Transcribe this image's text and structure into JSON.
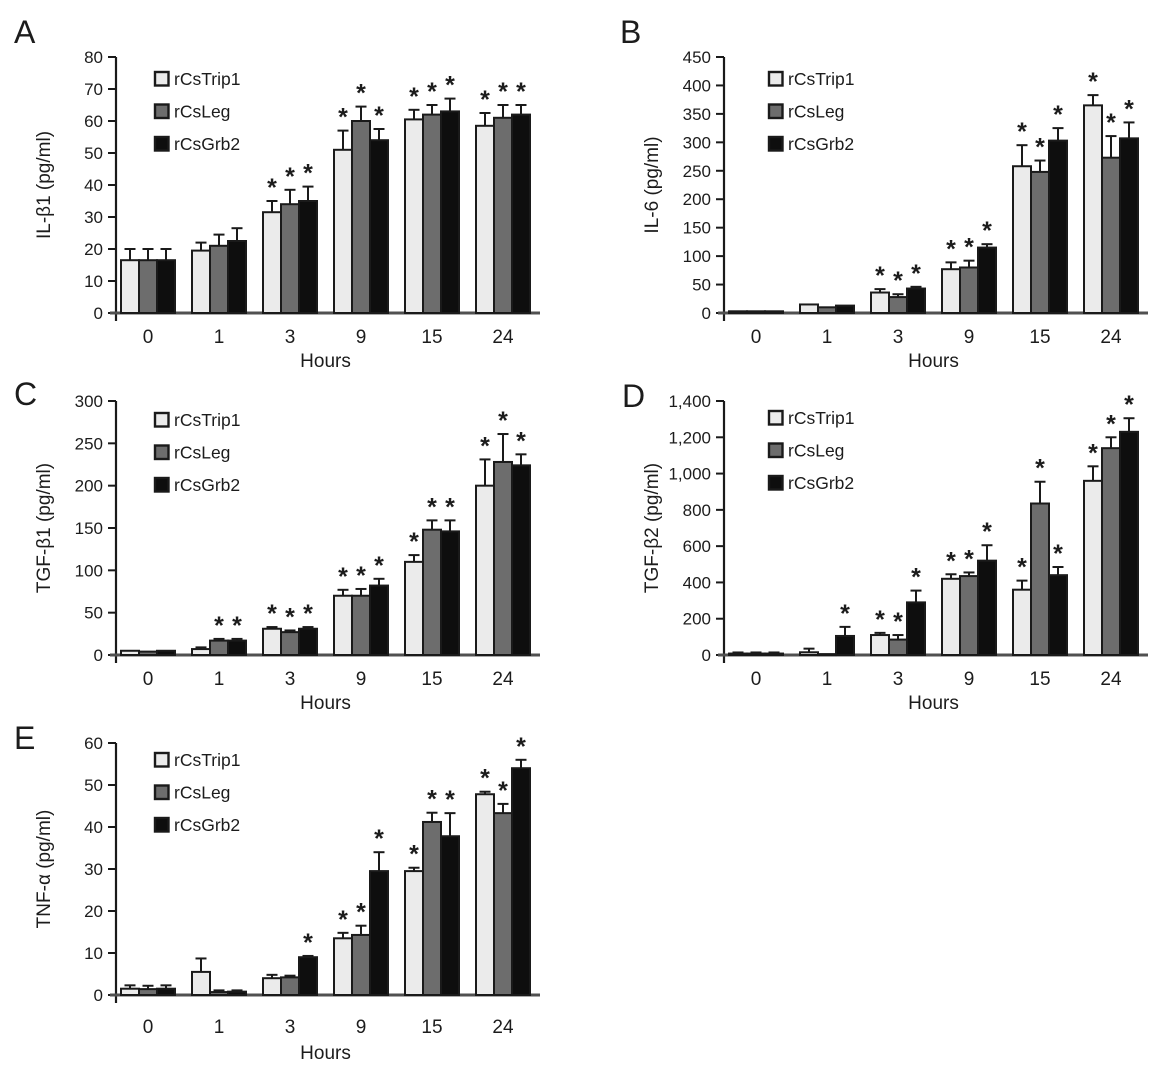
{
  "colors": {
    "rCsTrip1": "#ebebeb",
    "rCsLeg": "#6d6d6d",
    "rCsGrb2": "#0e0e0e",
    "bar_stroke": "#1a1a1a",
    "axis": "#1a1a1a",
    "baseline": "#505050",
    "text": "#1c1c1c"
  },
  "chart_data": [
    {
      "type": "bar",
      "panel_label": "A",
      "ylabel": "IL-β1 (pg/ml)",
      "xlabel": "Hours",
      "categories": [
        "0",
        "1",
        "3",
        "9",
        "15",
        "24"
      ],
      "ylim": [
        0,
        80
      ],
      "ytick_step": 10,
      "comma_ticks": false,
      "grid": false,
      "legend_position": "top-left",
      "legend": [
        "rCsTrip1",
        "rCsLeg",
        "rCsGrb2"
      ],
      "series": [
        {
          "name": "rCsTrip1",
          "values": [
            16.5,
            19.5,
            31.5,
            51,
            60.5,
            58.5
          ],
          "errors": [
            3.5,
            2.5,
            3.5,
            6,
            3,
            4
          ],
          "sig": [
            false,
            false,
            true,
            true,
            true,
            true
          ]
        },
        {
          "name": "rCsLeg",
          "values": [
            16.5,
            21,
            34,
            60,
            62,
            61
          ],
          "errors": [
            3.5,
            3.5,
            4.5,
            4.5,
            3,
            4
          ],
          "sig": [
            false,
            false,
            true,
            true,
            true,
            true
          ]
        },
        {
          "name": "rCsGrb2",
          "values": [
            16.5,
            22.5,
            35,
            54,
            63,
            62
          ],
          "errors": [
            3.5,
            4,
            4.5,
            3.5,
            4,
            3
          ],
          "sig": [
            false,
            false,
            true,
            true,
            true,
            true
          ]
        }
      ]
    },
    {
      "type": "bar",
      "panel_label": "B",
      "ylabel": "IL-6 (pg/ml)",
      "xlabel": "Hours",
      "categories": [
        "0",
        "1",
        "3",
        "9",
        "15",
        "24"
      ],
      "ylim": [
        0,
        450
      ],
      "ytick_step": 50,
      "comma_ticks": false,
      "grid": false,
      "legend_position": "top-left",
      "legend": [
        "rCsTrip1",
        "rCsLeg",
        "rCsGrb2"
      ],
      "series": [
        {
          "name": "rCsTrip1",
          "values": [
            3,
            15,
            36,
            77,
            258,
            365
          ],
          "errors": [
            0,
            0,
            6,
            12,
            37,
            18
          ],
          "sig": [
            false,
            false,
            true,
            true,
            true,
            true
          ]
        },
        {
          "name": "rCsLeg",
          "values": [
            3,
            10,
            28,
            80,
            248,
            273
          ],
          "errors": [
            0,
            0,
            5,
            12,
            20,
            38
          ],
          "sig": [
            false,
            false,
            true,
            true,
            true,
            true
          ]
        },
        {
          "name": "rCsGrb2",
          "values": [
            3,
            13,
            43,
            115,
            303,
            307
          ],
          "errors": [
            0,
            0,
            3,
            6,
            22,
            28
          ],
          "sig": [
            false,
            false,
            true,
            true,
            true,
            true
          ]
        }
      ]
    },
    {
      "type": "bar",
      "panel_label": "C",
      "ylabel": "TGF-β1 (pg/ml)",
      "xlabel": "Hours",
      "categories": [
        "0",
        "1",
        "3",
        "9",
        "15",
        "24"
      ],
      "ylim": [
        0,
        300
      ],
      "ytick_step": 50,
      "comma_ticks": false,
      "grid": false,
      "legend_position": "top-left",
      "legend": [
        "rCsTrip1",
        "rCsLeg",
        "rCsGrb2"
      ],
      "series": [
        {
          "name": "rCsTrip1",
          "values": [
            5,
            7,
            31,
            70,
            110,
            200
          ],
          "errors": [
            0,
            2,
            2,
            7,
            8,
            31
          ],
          "sig": [
            false,
            false,
            true,
            true,
            true,
            true
          ]
        },
        {
          "name": "rCsLeg",
          "values": [
            4,
            17,
            27,
            70,
            148,
            228
          ],
          "errors": [
            0,
            2,
            2,
            8,
            11,
            33
          ],
          "sig": [
            false,
            true,
            true,
            true,
            true,
            true
          ]
        },
        {
          "name": "rCsGrb2",
          "values": [
            5,
            17,
            31,
            82,
            146,
            224
          ],
          "errors": [
            0,
            2,
            2,
            8,
            13,
            13
          ],
          "sig": [
            false,
            true,
            true,
            true,
            true,
            true
          ]
        }
      ]
    },
    {
      "type": "bar",
      "panel_label": "D",
      "ylabel": "TGF-β2 (pg/ml)",
      "xlabel": "Hours",
      "categories": [
        "0",
        "1",
        "3",
        "9",
        "15",
        "24"
      ],
      "ylim": [
        0,
        1400
      ],
      "ytick_step": 200,
      "comma_ticks": true,
      "grid": false,
      "legend_position": "top-left",
      "legend": [
        "rCsTrip1",
        "rCsLeg",
        "rCsGrb2"
      ],
      "series": [
        {
          "name": "rCsTrip1",
          "values": [
            8,
            15,
            110,
            420,
            360,
            960
          ],
          "errors": [
            6,
            20,
            12,
            25,
            50,
            80
          ],
          "sig": [
            false,
            false,
            true,
            true,
            true,
            true
          ]
        },
        {
          "name": "rCsLeg",
          "values": [
            8,
            5,
            85,
            435,
            835,
            1140
          ],
          "errors": [
            6,
            0,
            25,
            20,
            120,
            60
          ],
          "sig": [
            false,
            false,
            true,
            true,
            true,
            true
          ]
        },
        {
          "name": "rCsGrb2",
          "values": [
            8,
            105,
            290,
            520,
            440,
            1230
          ],
          "errors": [
            6,
            50,
            65,
            85,
            45,
            75
          ],
          "sig": [
            false,
            true,
            true,
            true,
            true,
            true
          ]
        }
      ]
    },
    {
      "type": "bar",
      "panel_label": "E",
      "ylabel": "TNF-α (pg/ml)",
      "xlabel": "Hours",
      "categories": [
        "0",
        "1",
        "3",
        "9",
        "15",
        "24"
      ],
      "ylim": [
        0,
        60
      ],
      "ytick_step": 10,
      "comma_ticks": false,
      "grid": false,
      "legend_position": "top-left",
      "legend": [
        "rCsTrip1",
        "rCsLeg",
        "rCsGrb2"
      ],
      "series": [
        {
          "name": "rCsTrip1",
          "values": [
            1.5,
            5.5,
            4,
            13.5,
            29.5,
            47.8
          ],
          "errors": [
            0.8,
            3.2,
            0.8,
            1.3,
            0.8,
            0.6
          ],
          "sig": [
            false,
            false,
            false,
            true,
            true,
            true
          ]
        },
        {
          "name": "rCsLeg",
          "values": [
            1.4,
            0.7,
            4.2,
            14.3,
            41.2,
            43.3
          ],
          "errors": [
            0.8,
            0.4,
            0.4,
            2.2,
            2.2,
            2.2
          ],
          "sig": [
            false,
            false,
            false,
            true,
            true,
            true
          ]
        },
        {
          "name": "rCsGrb2",
          "values": [
            1.5,
            0.8,
            9,
            29.5,
            37.8,
            54
          ],
          "errors": [
            0.8,
            0.3,
            0.3,
            4.5,
            5.5,
            2
          ],
          "sig": [
            false,
            false,
            true,
            true,
            true,
            true
          ]
        }
      ]
    }
  ]
}
